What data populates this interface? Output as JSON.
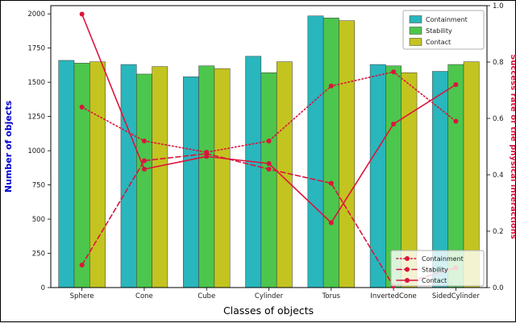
{
  "chart_data": {
    "type": "bar+line",
    "xlabel": "Classes of objects",
    "ylabel_left": "Number of objects",
    "ylabel_left_color": "#0000cd",
    "ylabel_right": "Success rate of the physical interactions",
    "ylabel_right_color": "#dc143c",
    "ylim_left": [
      0,
      2060
    ],
    "yticks_left": [
      0,
      250,
      500,
      750,
      1000,
      1250,
      1500,
      1750,
      2000
    ],
    "ylim_right": [
      0.0,
      1.0
    ],
    "yticks_right": [
      "0.0",
      "0.2",
      "0.4",
      "0.6",
      "0.8",
      "1.0"
    ],
    "categories": [
      "Sphere",
      "Cone",
      "Cube",
      "Cylinder",
      "Torus",
      "InvertedCone",
      "SidedCylinder"
    ],
    "grid": false,
    "bar_series": [
      {
        "name": "Containment",
        "color": "#29b6bd",
        "values": [
          1660,
          1630,
          1540,
          1690,
          1985,
          1630,
          1580
        ]
      },
      {
        "name": "Stability",
        "color": "#4cc64c",
        "values": [
          1640,
          1560,
          1620,
          1570,
          1970,
          1620,
          1630
        ]
      },
      {
        "name": "Contact",
        "color": "#c3c420",
        "values": [
          1650,
          1615,
          1600,
          1650,
          1950,
          1570,
          1650
        ]
      }
    ],
    "line_color": "#dc143c",
    "line_series": [
      {
        "name": "Containment",
        "style": "dotted",
        "values": [
          0.64,
          0.52,
          0.48,
          0.52,
          0.715,
          0.765,
          0.59
        ]
      },
      {
        "name": "Stability",
        "style": "dashed",
        "values": [
          0.08,
          0.45,
          0.475,
          0.42,
          0.37,
          0.005,
          0.07
        ]
      },
      {
        "name": "Contact",
        "style": "solid",
        "values": [
          0.97,
          0.42,
          0.465,
          0.44,
          0.23,
          0.58,
          0.72
        ]
      }
    ],
    "legend_bars": {
      "position": "upper right",
      "labels": [
        "Containment",
        "Stability",
        "Contact"
      ]
    },
    "legend_lines": {
      "position": "lower right",
      "labels": [
        "Containment",
        "Stability",
        "Contact"
      ]
    }
  }
}
